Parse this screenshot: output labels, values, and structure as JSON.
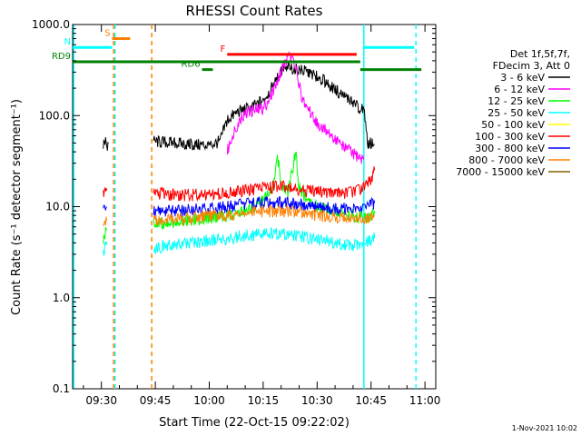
{
  "chart_data": {
    "type": "line",
    "title": "RHESSI Count Rates",
    "xlabel": "Start Time (22-Oct-15 09:22:02)",
    "ylabel": "Count Rate (s⁻¹ detector segment⁻¹)",
    "yscale": "log",
    "ylim": [
      0.1,
      1000
    ],
    "xlim_minutes": [
      562,
      663
    ],
    "x_ticks": [
      {
        "t": 570,
        "label": "09:30"
      },
      {
        "t": 585,
        "label": "09:45"
      },
      {
        "t": 600,
        "label": "10:00"
      },
      {
        "t": 615,
        "label": "10:15"
      },
      {
        "t": 630,
        "label": "10:30"
      },
      {
        "t": 645,
        "label": "10:45"
      },
      {
        "t": 660,
        "label": "11:00"
      }
    ],
    "y_ticks": [
      {
        "v": 0.1,
        "label": "0.1"
      },
      {
        "v": 1,
        "label": "1.0"
      },
      {
        "v": 10,
        "label": "10.0"
      },
      {
        "v": 100,
        "label": "100.0"
      },
      {
        "v": 1000,
        "label": "1000.0"
      }
    ],
    "legend": {
      "header": [
        "Det 1f,5f,7f,",
        "FDecim 3, Att 0"
      ],
      "placement": "right"
    },
    "series": [
      {
        "name": "3 - 6 keV",
        "color": "#000000",
        "segments": [
          [
            [
              570.5,
              48
            ],
            [
              571.0,
              52
            ],
            [
              571.5,
              45
            ],
            [
              572.0,
              50
            ]
          ],
          [
            [
              584.5,
              52
            ],
            [
              590,
              50
            ],
            [
              595,
              48
            ],
            [
              600,
              47
            ],
            [
              603,
              52
            ],
            [
              605,
              90
            ],
            [
              608,
              110
            ],
            [
              611,
              120
            ],
            [
              613,
              130
            ],
            [
              615,
              150
            ],
            [
              617,
              190
            ],
            [
              618,
              240
            ],
            [
              620,
              300
            ],
            [
              622,
              330
            ],
            [
              624,
              330
            ],
            [
              626,
              310
            ],
            [
              628,
              290
            ],
            [
              630,
              270
            ],
            [
              632,
              240
            ],
            [
              634,
              210
            ],
            [
              636,
              180
            ],
            [
              638,
              160
            ],
            [
              640,
              140
            ],
            [
              642,
              120
            ],
            [
              643,
              115
            ],
            [
              644,
              50
            ],
            [
              645,
              50
            ],
            [
              646,
              48
            ]
          ]
        ]
      },
      {
        "name": "6 - 12 keV",
        "color": "#ff00ff",
        "segments": [
          [
            [
              605,
              40
            ],
            [
              607,
              70
            ],
            [
              609,
              95
            ],
            [
              611,
              110
            ],
            [
              613,
              115
            ],
            [
              615,
              120
            ],
            [
              617,
              160
            ],
            [
              619,
              250
            ],
            [
              621,
              380
            ],
            [
              622,
              420
            ],
            [
              623,
              440
            ],
            [
              624,
              360
            ],
            [
              625,
              220
            ],
            [
              626,
              150
            ],
            [
              628,
              110
            ],
            [
              630,
              85
            ],
            [
              632,
              70
            ],
            [
              634,
              60
            ],
            [
              636,
              52
            ],
            [
              638,
              45
            ],
            [
              640,
              38
            ],
            [
              642,
              35
            ],
            [
              643,
              33
            ]
          ]
        ]
      },
      {
        "name": "12 - 25 keV",
        "color": "#00ff00",
        "segments": [
          [
            [
              570.5,
              4.5
            ],
            [
              571.5,
              5.5
            ]
          ],
          [
            [
              584.5,
              6.5
            ],
            [
              590,
              6.8
            ],
            [
              595,
              7.0
            ],
            [
              600,
              7.5
            ],
            [
              605,
              8.0
            ],
            [
              610,
              9.0
            ],
            [
              613,
              10
            ],
            [
              615,
              12
            ],
            [
              617,
              14
            ],
            [
              618,
              18
            ],
            [
              619,
              35
            ],
            [
              620,
              18
            ],
            [
              622,
              14
            ],
            [
              624,
              40
            ],
            [
              625,
              16
            ],
            [
              627,
              12
            ],
            [
              630,
              10
            ],
            [
              635,
              9
            ],
            [
              640,
              8
            ],
            [
              643,
              7.5
            ],
            [
              645,
              8
            ],
            [
              646,
              9
            ]
          ]
        ]
      },
      {
        "name": "25 - 50 keV",
        "color": "#00ffff",
        "segments": [
          [
            [
              570.5,
              3.2
            ],
            [
              571.5,
              3.8
            ]
          ],
          [
            [
              584.5,
              3.5
            ],
            [
              590,
              3.8
            ],
            [
              595,
              4.0
            ],
            [
              600,
              4.2
            ],
            [
              605,
              4.5
            ],
            [
              610,
              4.8
            ],
            [
              615,
              5.0
            ],
            [
              620,
              5.0
            ],
            [
              625,
              4.7
            ],
            [
              630,
              4.4
            ],
            [
              635,
              4.0
            ],
            [
              640,
              3.8
            ],
            [
              643,
              4.0
            ],
            [
              646,
              4.5
            ]
          ]
        ]
      },
      {
        "name": "50 - 100 keV",
        "color": "#ffff00",
        "segments": []
      },
      {
        "name": "100 - 300 keV",
        "color": "#ff0000",
        "segments": [
          [
            [
              570.5,
              14
            ],
            [
              571.5,
              15
            ]
          ],
          [
            [
              584.5,
              14
            ],
            [
              590,
              13.5
            ],
            [
              595,
              13.5
            ],
            [
              600,
              13.8
            ],
            [
              605,
              14
            ],
            [
              610,
              15
            ],
            [
              615,
              16
            ],
            [
              620,
              16.5
            ],
            [
              625,
              15.5
            ],
            [
              630,
              14.5
            ],
            [
              635,
              14
            ],
            [
              640,
              14.5
            ],
            [
              643,
              16
            ],
            [
              645,
              20
            ],
            [
              646,
              25
            ]
          ]
        ]
      },
      {
        "name": "300 - 800 keV",
        "color": "#0000ff",
        "segments": [
          [
            [
              570.5,
              9
            ],
            [
              571.5,
              10
            ]
          ],
          [
            [
              584.5,
              9
            ],
            [
              590,
              9
            ],
            [
              595,
              9.2
            ],
            [
              600,
              9.5
            ],
            [
              605,
              10
            ],
            [
              610,
              10.5
            ],
            [
              615,
              11
            ],
            [
              620,
              11
            ],
            [
              625,
              10.5
            ],
            [
              630,
              10
            ],
            [
              635,
              9.5
            ],
            [
              640,
              9.5
            ],
            [
              643,
              10
            ],
            [
              646,
              11
            ]
          ]
        ]
      },
      {
        "name": "800 - 7000 keV",
        "color": "#ff8000",
        "segments": [
          [
            [
              570.5,
              6.5
            ],
            [
              571.5,
              7
            ]
          ],
          [
            [
              584.5,
              7
            ],
            [
              590,
              7.2
            ],
            [
              595,
              7.4
            ],
            [
              600,
              7.8
            ],
            [
              605,
              8
            ],
            [
              610,
              8.5
            ],
            [
              615,
              8.8
            ],
            [
              620,
              8.8
            ],
            [
              625,
              8.5
            ],
            [
              630,
              8
            ],
            [
              635,
              7.5
            ],
            [
              640,
              7.3
            ],
            [
              643,
              7.5
            ],
            [
              646,
              8
            ]
          ]
        ]
      },
      {
        "name": "7000 - 15000 keV",
        "color": "#806000",
        "segments": []
      }
    ],
    "annotations": [
      {
        "label": "S",
        "color": "#ff8000",
        "kind": "bar",
        "t0": 573,
        "t1": 578,
        "v": 700
      },
      {
        "label": "N",
        "color": "#00ffff",
        "kind": "bar",
        "t0": 562,
        "t1": 573,
        "v": 560
      },
      {
        "label": "",
        "color": "#00ffff",
        "kind": "bar",
        "t0": 643,
        "t1": 657,
        "v": 560
      },
      {
        "label": "F",
        "color": "#ff0000",
        "kind": "bar",
        "t0": 605,
        "t1": 641,
        "v": 470
      },
      {
        "label": "RD9",
        "color": "#008000",
        "kind": "bar",
        "t0": 562,
        "t1": 642,
        "v": 390
      },
      {
        "label": "RD6",
        "color": "#008000",
        "kind": "bar",
        "t0": 598,
        "t1": 601,
        "v": 320
      },
      {
        "label": "",
        "color": "#008000",
        "kind": "bar",
        "t0": 642,
        "t1": 659,
        "v": 320
      }
    ],
    "vlines": [
      {
        "t": 562.3,
        "color": "#00ffff",
        "dashed": false
      },
      {
        "t": 573.8,
        "color": "#00ffff",
        "dashed": true
      },
      {
        "t": 573.4,
        "color": "#ff8000",
        "dashed": true
      },
      {
        "t": 584.0,
        "color": "#ff8000",
        "dashed": true
      },
      {
        "t": 643.0,
        "color": "#00ffff",
        "dashed": false
      },
      {
        "t": 657.5,
        "color": "#00ffff",
        "dashed": true
      }
    ]
  },
  "footer_timestamp": "1-Nov-2021 10:02"
}
